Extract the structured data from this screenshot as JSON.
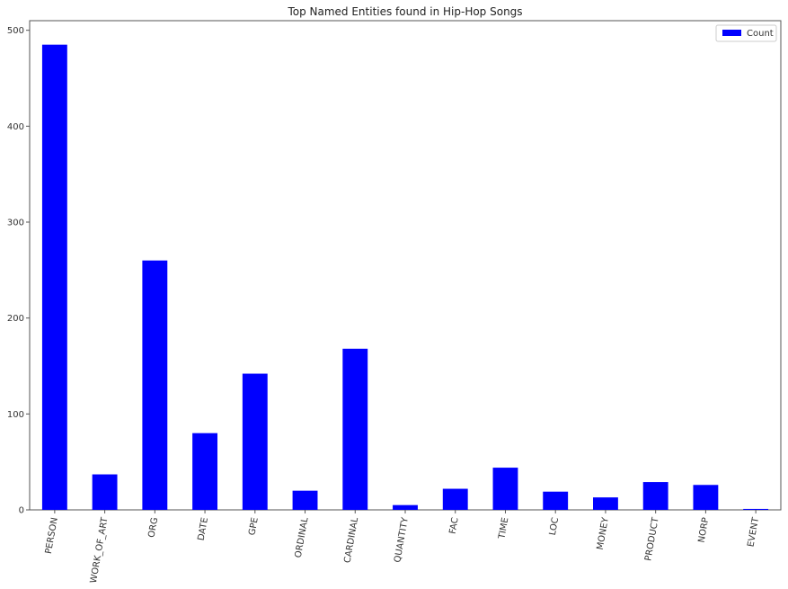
{
  "chart_data": {
    "type": "bar",
    "title": "Top Named Entities found in Hip-Hop Songs",
    "xlabel": "",
    "ylabel": "",
    "categories": [
      "PERSON",
      "WORK_OF_ART",
      "ORG",
      "DATE",
      "GPE",
      "ORDINAL",
      "CARDINAL",
      "QUANTITY",
      "FAC",
      "TIME",
      "LOC",
      "MONEY",
      "PRODUCT",
      "NORP",
      "EVENT"
    ],
    "series": [
      {
        "name": "Count",
        "color": "#0000ff",
        "values": [
          485,
          37,
          260,
          80,
          142,
          20,
          168,
          5,
          22,
          44,
          19,
          13,
          29,
          26,
          1
        ]
      }
    ],
    "ylim": [
      0,
      510
    ],
    "yticks": [
      0,
      100,
      200,
      300,
      400,
      500
    ],
    "grid": false,
    "legend": "top-right"
  }
}
